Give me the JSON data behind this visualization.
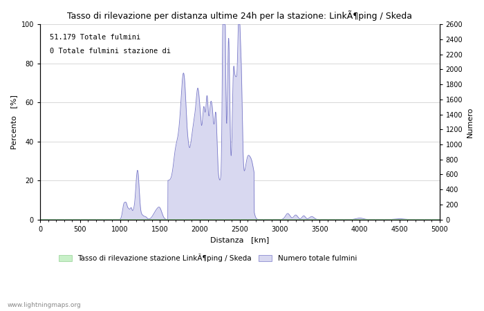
{
  "title": "Tasso di rilevazione per distanza ultime 24h per la stazione: LinkÃ¶ping / Skeda",
  "xlabel": "Distanza   [km]",
  "ylabel_left": "Percento   [%]",
  "ylabel_right": "Numero",
  "annotation_line1": "51.179 Totale fulmini",
  "annotation_line2": "0 Totale fulmini stazione di",
  "xlim": [
    0,
    5000
  ],
  "ylim_left": [
    0,
    100
  ],
  "ylim_right": [
    0,
    2600
  ],
  "xticks": [
    0,
    500,
    1000,
    1500,
    2000,
    2500,
    3000,
    3500,
    4000,
    4500,
    5000
  ],
  "yticks_left": [
    0,
    20,
    40,
    60,
    80,
    100
  ],
  "yticks_right": [
    0,
    200,
    400,
    600,
    800,
    1000,
    1200,
    1400,
    1600,
    1800,
    2000,
    2200,
    2400,
    2600
  ],
  "legend_label_green": "Tasso di rilevazione stazione LinkÃ¶ping / Skeda",
  "legend_label_blue": "Numero totale fulmini",
  "watermark": "www.lightningmaps.org",
  "fill_color_green": "#c8f0c8",
  "fill_color_blue": "#d8d8f0",
  "line_color_blue": "#7878c8",
  "line_color_green": "#90d090",
  "background_color": "#ffffff",
  "grid_color": "#c8c8c8"
}
